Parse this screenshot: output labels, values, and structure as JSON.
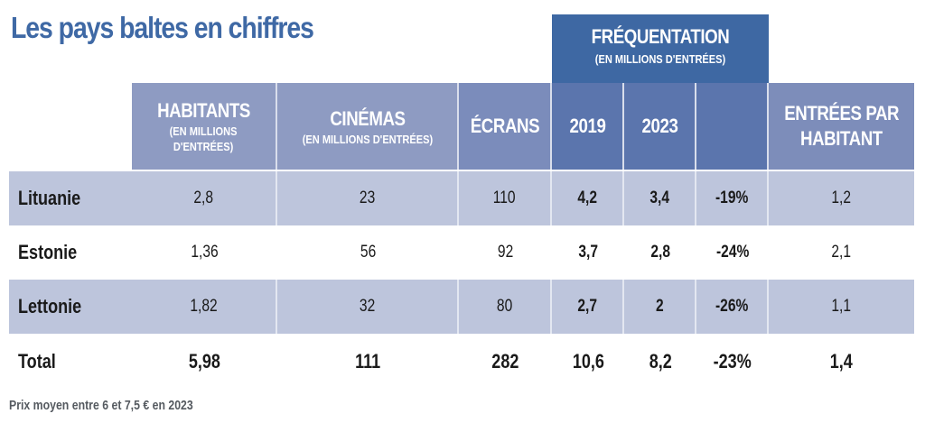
{
  "title": "Les pays baltes en chiffres",
  "header": {
    "frequentation": {
      "main": "FRÉQUENTATION",
      "sub": "(EN MILLIONS D'ENTRÉES)"
    },
    "habitants": {
      "main": "HABITANTS",
      "sub1": "(EN MILLIONS",
      "sub2": "D'ENTRÉES)"
    },
    "cinemas": {
      "main": "CINÉMAS",
      "sub": "(EN MILLIONS D'ENTRÉES)"
    },
    "ecrans": {
      "main": "ÉCRANS"
    },
    "y2019": {
      "main": "2019"
    },
    "y2023": {
      "main": "2023"
    },
    "variation": {
      "main": ""
    },
    "entrees": {
      "main1": "ENTRÉES PAR",
      "main2": "HABITANT"
    }
  },
  "colors": {
    "title": "#3f69a5",
    "frequentation_header": "#3e68a3",
    "header_light": "#8e9bc2",
    "header_mid": "#7b8cbb",
    "header_dark": "#5b75ad",
    "row_shade": "#bdc5dc"
  },
  "rows": [
    {
      "pays": "Lituanie",
      "habitants": "2,8",
      "cinemas": "23",
      "ecrans": "110",
      "y2019": "4,2",
      "y2023": "3,4",
      "variation": "-19%",
      "entrees": "1,2"
    },
    {
      "pays": "Estonie",
      "habitants": "1,36",
      "cinemas": "56",
      "ecrans": "92",
      "y2019": "3,7",
      "y2023": "2,8",
      "variation": "-24%",
      "entrees": "2,1"
    },
    {
      "pays": "Lettonie",
      "habitants": "1,82",
      "cinemas": "32",
      "ecrans": "80",
      "y2019": "2,7",
      "y2023": "2",
      "variation": "-26%",
      "entrees": "1,1"
    }
  ],
  "total": {
    "pays": "Total",
    "habitants": "5,98",
    "cinemas": "111",
    "ecrans": "282",
    "y2019": "10,6",
    "y2023": "8,2",
    "variation": "-23%",
    "entrees": "1,4"
  },
  "footnote": "Prix moyen entre 6 et 7,5 € en 2023"
}
